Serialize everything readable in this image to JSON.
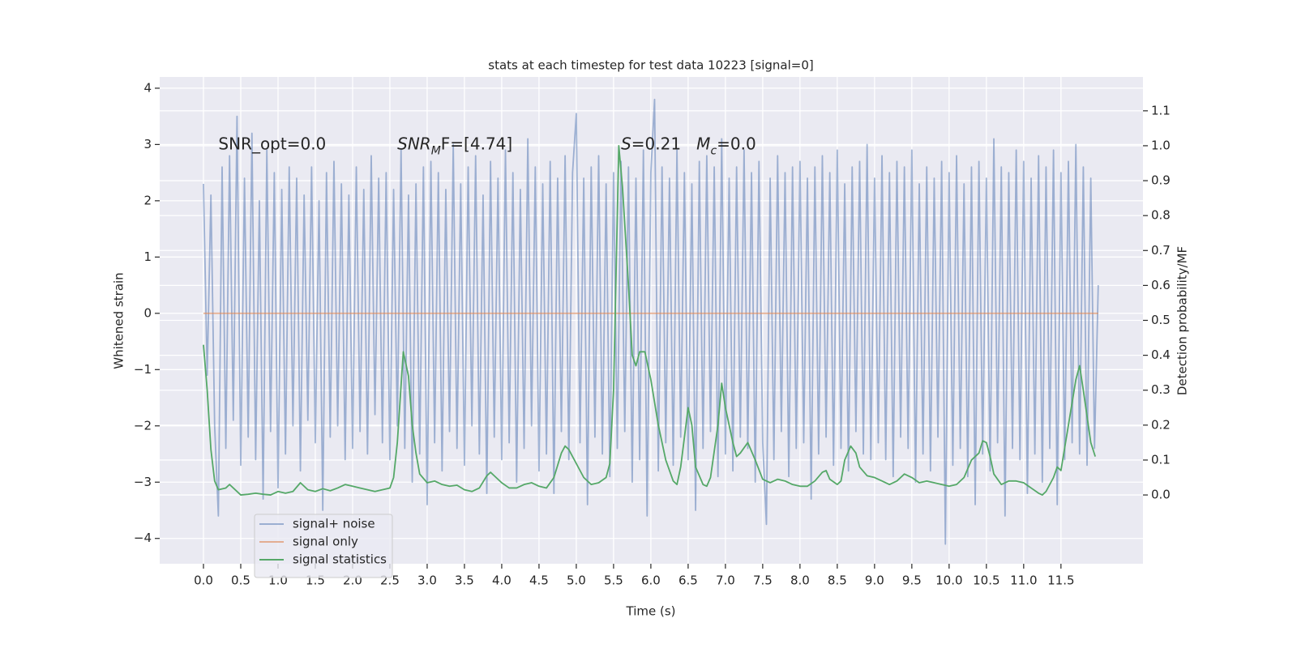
{
  "chart_data": {
    "type": "line",
    "title": "stats at each timestep for test data 10223 [signal=0]",
    "xlabel": "Time (s)",
    "ylabel": "Whitened strain",
    "y2label": "Detection probability/MF",
    "xlim": [
      -0.587,
      12.6
    ],
    "ylim": [
      -4.45,
      4.2
    ],
    "y2lim": [
      -0.197,
      1.197
    ],
    "xticks": [
      {
        "value": 0,
        "label": "0.0"
      },
      0.5,
      {
        "value": 1,
        "label": "1.0"
      },
      1.5,
      {
        "value": 2,
        "label": "2.0"
      },
      2.5,
      {
        "value": 3,
        "label": "3.0"
      },
      3.5,
      {
        "value": 4,
        "label": "4.0"
      },
      4.5,
      {
        "value": 5,
        "label": "5.0"
      },
      5.5,
      {
        "value": 6,
        "label": "6.0"
      },
      6.5,
      {
        "value": 7,
        "label": "7.0"
      },
      7.5,
      {
        "value": 8,
        "label": "8.0"
      },
      8.5,
      {
        "value": 9,
        "label": "9.0"
      },
      9.5,
      {
        "value": 10,
        "label": "10.0"
      },
      10.5,
      {
        "value": 11,
        "label": "11.0"
      },
      11.5
    ],
    "yticks": [
      {
        "value": -4,
        "label": "−4"
      },
      {
        "value": -3,
        "label": "−3"
      },
      {
        "value": -2,
        "label": "−2"
      },
      {
        "value": -1,
        "label": "−1"
      },
      0,
      1,
      2,
      3,
      4
    ],
    "y2ticks": [
      {
        "value": 0,
        "label": "0.0"
      },
      {
        "value": 0.1,
        "label": "0.1"
      },
      {
        "value": 0.2,
        "label": "0.2"
      },
      {
        "value": 0.3,
        "label": "0.3"
      },
      {
        "value": 0.4,
        "label": "0.4"
      },
      {
        "value": 0.5,
        "label": "0.5"
      },
      {
        "value": 0.6,
        "label": "0.6"
      },
      {
        "value": 0.7,
        "label": "0.7"
      },
      {
        "value": 0.8,
        "label": "0.8"
      },
      {
        "value": 0.9,
        "label": "0.9"
      },
      {
        "value": 1,
        "label": "1.0"
      },
      {
        "value": 1.1,
        "label": "1.1"
      }
    ],
    "grid": true,
    "legend": "lower left",
    "annotations": [
      {
        "x": 0.2,
        "y": 3,
        "parts": [
          {
            "text": "SNR_opt=0.0"
          }
        ]
      },
      {
        "x": 2.6,
        "y": 3,
        "parts": [
          {
            "text": "SNR",
            "italic": true
          },
          {
            "text": "M",
            "italic": true,
            "sub": true
          },
          {
            "text": "F=[4.74]"
          }
        ]
      },
      {
        "x": 5.6,
        "y": 3,
        "parts": [
          {
            "text": "S",
            "italic": true
          },
          {
            "text": "=0.21   "
          },
          {
            "text": "M",
            "italic": true
          },
          {
            "text": "c",
            "italic": true,
            "sub": true
          },
          {
            "text": "=0.0"
          }
        ]
      }
    ],
    "series": [
      {
        "name": "signal+ noise",
        "color": "#4c72b0",
        "opacity": 0.5,
        "x": [
          0,
          0.05,
          0.1,
          0.15,
          0.2,
          0.25,
          0.3,
          0.35,
          0.4,
          0.45,
          0.5,
          0.55,
          0.6,
          0.65,
          0.7,
          0.75,
          0.8,
          0.85,
          0.9,
          0.95,
          1,
          1.05,
          1.1,
          1.15,
          1.2,
          1.25,
          1.3,
          1.35,
          1.4,
          1.45,
          1.5,
          1.55,
          1.6,
          1.65,
          1.7,
          1.75,
          1.8,
          1.85,
          1.9,
          1.95,
          2,
          2.05,
          2.1,
          2.15,
          2.2,
          2.25,
          2.3,
          2.35,
          2.4,
          2.45,
          2.5,
          2.55,
          2.6,
          2.65,
          2.7,
          2.75,
          2.8,
          2.85,
          2.9,
          2.95,
          3,
          3.05,
          3.1,
          3.15,
          3.2,
          3.25,
          3.3,
          3.35,
          3.4,
          3.45,
          3.5,
          3.55,
          3.6,
          3.65,
          3.7,
          3.75,
          3.8,
          3.85,
          3.9,
          3.95,
          4,
          4.05,
          4.1,
          4.15,
          4.2,
          4.25,
          4.3,
          4.35,
          4.4,
          4.45,
          4.5,
          4.55,
          4.6,
          4.65,
          4.7,
          4.75,
          4.8,
          4.85,
          4.9,
          4.95,
          5,
          5.05,
          5.1,
          5.15,
          5.2,
          5.25,
          5.3,
          5.35,
          5.4,
          5.45,
          5.5,
          5.55,
          5.6,
          5.65,
          5.7,
          5.75,
          5.8,
          5.85,
          5.9,
          5.95,
          6,
          6.05,
          6.1,
          6.15,
          6.2,
          6.25,
          6.3,
          6.35,
          6.4,
          6.45,
          6.5,
          6.55,
          6.6,
          6.65,
          6.7,
          6.75,
          6.8,
          6.85,
          6.9,
          6.95,
          7,
          7.05,
          7.1,
          7.15,
          7.2,
          7.25,
          7.3,
          7.35,
          7.4,
          7.45,
          7.5,
          7.55,
          7.6,
          7.65,
          7.7,
          7.75,
          7.8,
          7.85,
          7.9,
          7.95,
          8,
          8.05,
          8.1,
          8.15,
          8.2,
          8.25,
          8.3,
          8.35,
          8.4,
          8.45,
          8.5,
          8.55,
          8.6,
          8.65,
          8.7,
          8.75,
          8.8,
          8.85,
          8.9,
          8.95,
          9,
          9.05,
          9.1,
          9.15,
          9.2,
          9.25,
          9.3,
          9.35,
          9.4,
          9.45,
          9.5,
          9.55,
          9.6,
          9.65,
          9.7,
          9.75,
          9.8,
          9.85,
          9.9,
          9.95,
          10,
          10.05,
          10.1,
          10.15,
          10.2,
          10.25,
          10.3,
          10.35,
          10.4,
          10.45,
          10.5,
          10.55,
          10.6,
          10.65,
          10.7,
          10.75,
          10.8,
          10.85,
          10.9,
          10.95,
          11,
          11.05,
          11.1,
          11.15,
          11.2,
          11.25,
          11.3,
          11.35,
          11.4,
          11.45,
          11.5,
          11.55,
          11.6,
          11.65,
          11.7,
          11.75,
          11.8,
          11.85,
          11.9,
          11.95,
          12
        ],
        "values": [
          2.3,
          -1.1,
          2.1,
          -2.0,
          -3.6,
          2.6,
          -2.4,
          2.8,
          -1.9,
          3.5,
          -2.7,
          2.4,
          -2.2,
          3.2,
          -2.6,
          2.0,
          -3.3,
          2.9,
          -2.1,
          2.5,
          -3.1,
          2.2,
          -2.5,
          2.6,
          -2.0,
          2.4,
          -2.8,
          2.1,
          -1.9,
          2.6,
          -2.3,
          2.0,
          -3.5,
          2.5,
          -2.2,
          2.7,
          -2.0,
          2.3,
          -2.6,
          2.1,
          -2.4,
          2.6,
          -2.1,
          2.2,
          -2.5,
          2.8,
          -1.8,
          2.4,
          -2.3,
          2.5,
          -2.6,
          2.2,
          -2.0,
          2.9,
          -2.4,
          2.1,
          -3.0,
          2.3,
          -2.5,
          2.6,
          -3.4,
          2.7,
          -2.3,
          2.5,
          -2.8,
          2.2,
          -2.1,
          3.0,
          -2.4,
          2.3,
          -2.7,
          2.6,
          -2.0,
          2.8,
          -2.5,
          2.1,
          -3.2,
          2.7,
          -2.2,
          2.4,
          -2.6,
          2.9,
          -2.3,
          2.5,
          -3.0,
          2.2,
          -2.4,
          3.1,
          -2.0,
          2.6,
          -2.8,
          2.3,
          -2.5,
          2.7,
          -3.2,
          2.4,
          -2.1,
          2.8,
          -2.6,
          2.5,
          3.55,
          -2.3,
          2.4,
          -3.4,
          2.6,
          -2.2,
          2.8,
          -2.5,
          2.3,
          -2.9,
          2.5,
          -2.4,
          2.7,
          -2.1,
          2.6,
          -3.0,
          2.4,
          -2.6,
          2.9,
          -3.6,
          2.5,
          3.8,
          -2.8,
          2.6,
          -2.3,
          2.4,
          -2.7,
          2.9,
          -2.2,
          2.5,
          -2.6,
          2.3,
          -3.5,
          2.7,
          -2.4,
          2.8,
          -2.1,
          2.6,
          -2.9,
          3.1,
          -2.5,
          2.4,
          -2.8,
          2.6,
          -2.2,
          2.9,
          -2.4,
          2.5,
          -3.0,
          2.7,
          -2.3,
          -3.75,
          2.4,
          -2.6,
          2.8,
          -2.1,
          2.5,
          -2.9,
          2.6,
          -2.4,
          2.7,
          -2.3,
          2.4,
          -3.3,
          2.6,
          -2.5,
          2.8,
          -2.2,
          2.5,
          -2.7,
          2.9,
          -2.4,
          2.3,
          -2.8,
          2.6,
          -2.1,
          2.7,
          -2.5,
          3.0,
          -2.6,
          2.4,
          -2.3,
          2.8,
          -2.6,
          2.5,
          -2.9,
          2.7,
          -2.2,
          2.6,
          -2.4,
          2.9,
          -3.0,
          2.3,
          -2.5,
          2.6,
          -2.8,
          2.4,
          -2.2,
          2.7,
          -4.1,
          2.5,
          -2.7,
          2.8,
          -2.4,
          2.3,
          -2.9,
          2.6,
          -3.4,
          2.7,
          -2.5,
          2.4,
          -2.8,
          3.1,
          -2.3,
          2.6,
          -3.6,
          2.5,
          -2.4,
          2.9,
          -2.6,
          2.7,
          -3.2,
          2.4,
          -2.5,
          2.8,
          -3.0,
          2.6,
          -2.4,
          2.9,
          -3.4,
          2.5,
          -2.6,
          2.7,
          -2.3,
          3.0,
          -2.5,
          2.6,
          -2.7,
          2.4,
          -2.4,
          0.5
        ]
      },
      {
        "name": "signal only",
        "color": "#dd8452",
        "opacity": 0.6,
        "x": [
          0,
          12
        ],
        "values": [
          0,
          0
        ]
      },
      {
        "name": "signal statistics",
        "color": "#55a868",
        "opacity": 1,
        "axis": "y2",
        "x": [
          0,
          0.05,
          0.1,
          0.15,
          0.2,
          0.3,
          0.35,
          0.4,
          0.5,
          0.6,
          0.7,
          0.8,
          0.9,
          1,
          1.1,
          1.2,
          1.3,
          1.4,
          1.5,
          1.6,
          1.7,
          1.8,
          1.9,
          2,
          2.1,
          2.2,
          2.3,
          2.4,
          2.5,
          2.55,
          2.6,
          2.68,
          2.75,
          2.8,
          2.85,
          2.9,
          3,
          3.1,
          3.2,
          3.3,
          3.4,
          3.5,
          3.6,
          3.7,
          3.8,
          3.85,
          3.9,
          4,
          4.1,
          4.2,
          4.3,
          4.4,
          4.5,
          4.6,
          4.7,
          4.8,
          4.85,
          4.9,
          5,
          5.1,
          5.2,
          5.3,
          5.4,
          5.45,
          5.5,
          5.53,
          5.57,
          5.62,
          5.7,
          5.75,
          5.8,
          5.85,
          5.92,
          6,
          6.1,
          6.2,
          6.3,
          6.35,
          6.4,
          6.5,
          6.55,
          6.6,
          6.7,
          6.75,
          6.8,
          6.9,
          6.95,
          7,
          7.1,
          7.15,
          7.2,
          7.3,
          7.4,
          7.5,
          7.6,
          7.7,
          7.8,
          7.9,
          8,
          8.1,
          8.2,
          8.3,
          8.35,
          8.4,
          8.5,
          8.55,
          8.6,
          8.68,
          8.75,
          8.8,
          8.9,
          9,
          9.1,
          9.2,
          9.3,
          9.4,
          9.5,
          9.6,
          9.7,
          9.8,
          9.9,
          10,
          10.1,
          10.2,
          10.3,
          10.4,
          10.45,
          10.5,
          10.55,
          10.6,
          10.7,
          10.8,
          10.9,
          11,
          11.1,
          11.2,
          11.25,
          11.3,
          11.4,
          11.45,
          11.5,
          11.6,
          11.7,
          11.75,
          11.8,
          11.9,
          11.96
        ],
        "values": [
          0.43,
          0.3,
          0.13,
          0.04,
          0.015,
          0.02,
          0.03,
          0.02,
          0,
          0.002,
          0.005,
          0.002,
          0,
          0.01,
          0.005,
          0.01,
          0.035,
          0.015,
          0.01,
          0.018,
          0.012,
          0.02,
          0.03,
          0.025,
          0.02,
          0.015,
          0.01,
          0.015,
          0.02,
          0.05,
          0.15,
          0.41,
          0.34,
          0.2,
          0.12,
          0.06,
          0.035,
          0.04,
          0.03,
          0.025,
          0.028,
          0.015,
          0.01,
          0.02,
          0.055,
          0.065,
          0.055,
          0.035,
          0.02,
          0.02,
          0.03,
          0.035,
          0.025,
          0.02,
          0.05,
          0.12,
          0.14,
          0.13,
          0.09,
          0.05,
          0.03,
          0.035,
          0.05,
          0.09,
          0.3,
          0.6,
          1,
          0.88,
          0.6,
          0.4,
          0.37,
          0.41,
          0.41,
          0.33,
          0.2,
          0.1,
          0.04,
          0.03,
          0.08,
          0.25,
          0.2,
          0.08,
          0.03,
          0.025,
          0.05,
          0.2,
          0.32,
          0.25,
          0.15,
          0.11,
          0.12,
          0.15,
          0.1,
          0.045,
          0.035,
          0.045,
          0.04,
          0.03,
          0.025,
          0.025,
          0.04,
          0.065,
          0.07,
          0.045,
          0.03,
          0.04,
          0.1,
          0.14,
          0.12,
          0.08,
          0.055,
          0.05,
          0.04,
          0.03,
          0.04,
          0.06,
          0.05,
          0.035,
          0.04,
          0.035,
          0.03,
          0.025,
          0.03,
          0.05,
          0.1,
          0.12,
          0.155,
          0.15,
          0.11,
          0.06,
          0.03,
          0.04,
          0.04,
          0.035,
          0.02,
          0.005,
          0,
          0.01,
          0.05,
          0.08,
          0.07,
          0.2,
          0.33,
          0.37,
          0.3,
          0.15,
          0.11
        ]
      }
    ]
  }
}
